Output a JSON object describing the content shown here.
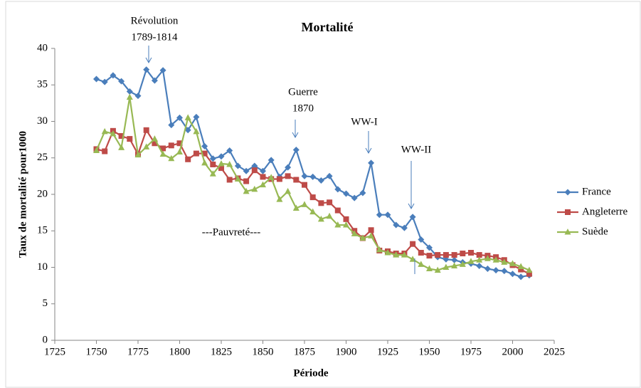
{
  "chart_data": {
    "type": "line",
    "title": "Mortalité",
    "x_label": "Période",
    "y_label": "Taux de mortalité pour1000",
    "x": [
      1750,
      1755,
      1760,
      1765,
      1770,
      1775,
      1780,
      1785,
      1790,
      1795,
      1800,
      1805,
      1810,
      1815,
      1820,
      1825,
      1830,
      1835,
      1840,
      1845,
      1850,
      1855,
      1860,
      1865,
      1870,
      1875,
      1880,
      1885,
      1890,
      1895,
      1900,
      1905,
      1910,
      1915,
      1920,
      1925,
      1930,
      1935,
      1940,
      1945,
      1950,
      1955,
      1960,
      1965,
      1970,
      1975,
      1980,
      1985,
      1990,
      1995,
      2000,
      2005,
      2010
    ],
    "series": [
      {
        "name": "France",
        "color": "#4a7ebb",
        "marker": "diamond",
        "values": [
          35.8,
          35.4,
          36.3,
          35.5,
          34.1,
          33.5,
          37.1,
          35.6,
          37.0,
          29.5,
          30.5,
          28.8,
          30.6,
          26.6,
          24.9,
          25.2,
          26.0,
          23.9,
          23.2,
          23.9,
          23.2,
          24.7,
          22.4,
          23.7,
          26.1,
          22.5,
          22.4,
          21.9,
          22.5,
          20.7,
          20.1,
          19.5,
          20.2,
          24.3,
          17.2,
          17.2,
          15.8,
          15.4,
          16.9,
          13.8,
          12.7,
          11.4,
          11.1,
          11.0,
          10.7,
          10.5,
          10.2,
          9.8,
          9.6,
          9.5,
          9.1,
          8.7,
          8.9
        ]
      },
      {
        "name": "Angleterre",
        "color": "#be4b48",
        "marker": "square",
        "values": [
          26.2,
          25.9,
          28.7,
          28.0,
          27.6,
          25.5,
          28.8,
          27.0,
          26.3,
          26.7,
          27.0,
          24.8,
          25.6,
          25.6,
          24.1,
          23.6,
          22.0,
          22.2,
          21.8,
          23.3,
          22.4,
          22.1,
          22.1,
          22.5,
          22.0,
          21.3,
          19.6,
          18.8,
          18.9,
          17.8,
          16.6,
          15.0,
          14.0,
          15.1,
          12.3,
          12.2,
          11.9,
          11.9,
          13.2,
          12.0,
          11.6,
          11.7,
          11.7,
          11.7,
          11.9,
          12.0,
          11.7,
          11.6,
          11.4,
          11.0,
          10.3,
          9.7,
          9.1
        ]
      },
      {
        "name": "Suède",
        "color": "#98b954",
        "marker": "triangle",
        "values": [
          26.0,
          28.6,
          28.3,
          26.4,
          33.3,
          25.4,
          26.5,
          27.6,
          25.5,
          24.9,
          25.8,
          30.5,
          28.6,
          24.3,
          22.8,
          24.2,
          24.1,
          22.1,
          20.4,
          20.7,
          21.3,
          22.3,
          19.3,
          20.4,
          18.1,
          18.6,
          17.6,
          16.6,
          17.0,
          15.8,
          15.8,
          14.6,
          14.0,
          14.3,
          12.4,
          12.0,
          11.7,
          11.7,
          11.1,
          10.4,
          9.8,
          9.6,
          10.0,
          10.2,
          10.4,
          10.8,
          11.0,
          11.2,
          11.0,
          10.7,
          10.5,
          10.1,
          9.6
        ]
      }
    ],
    "xlim": [
      1725,
      2025
    ],
    "xticks": [
      1725,
      1750,
      1775,
      1800,
      1825,
      1850,
      1875,
      1900,
      1925,
      1950,
      1975,
      2000,
      2025
    ],
    "ylim": [
      0,
      40
    ],
    "yticks": [
      0,
      5,
      10,
      15,
      20,
      25,
      30,
      35,
      40
    ],
    "legend": "right",
    "annotations": [
      [
        "Révolution",
        "1789-1814"
      ],
      [
        "Guerre",
        "1870"
      ],
      [
        "WW-I"
      ],
      [
        "WW-II"
      ],
      [
        "---Pauvreté---"
      ]
    ]
  }
}
